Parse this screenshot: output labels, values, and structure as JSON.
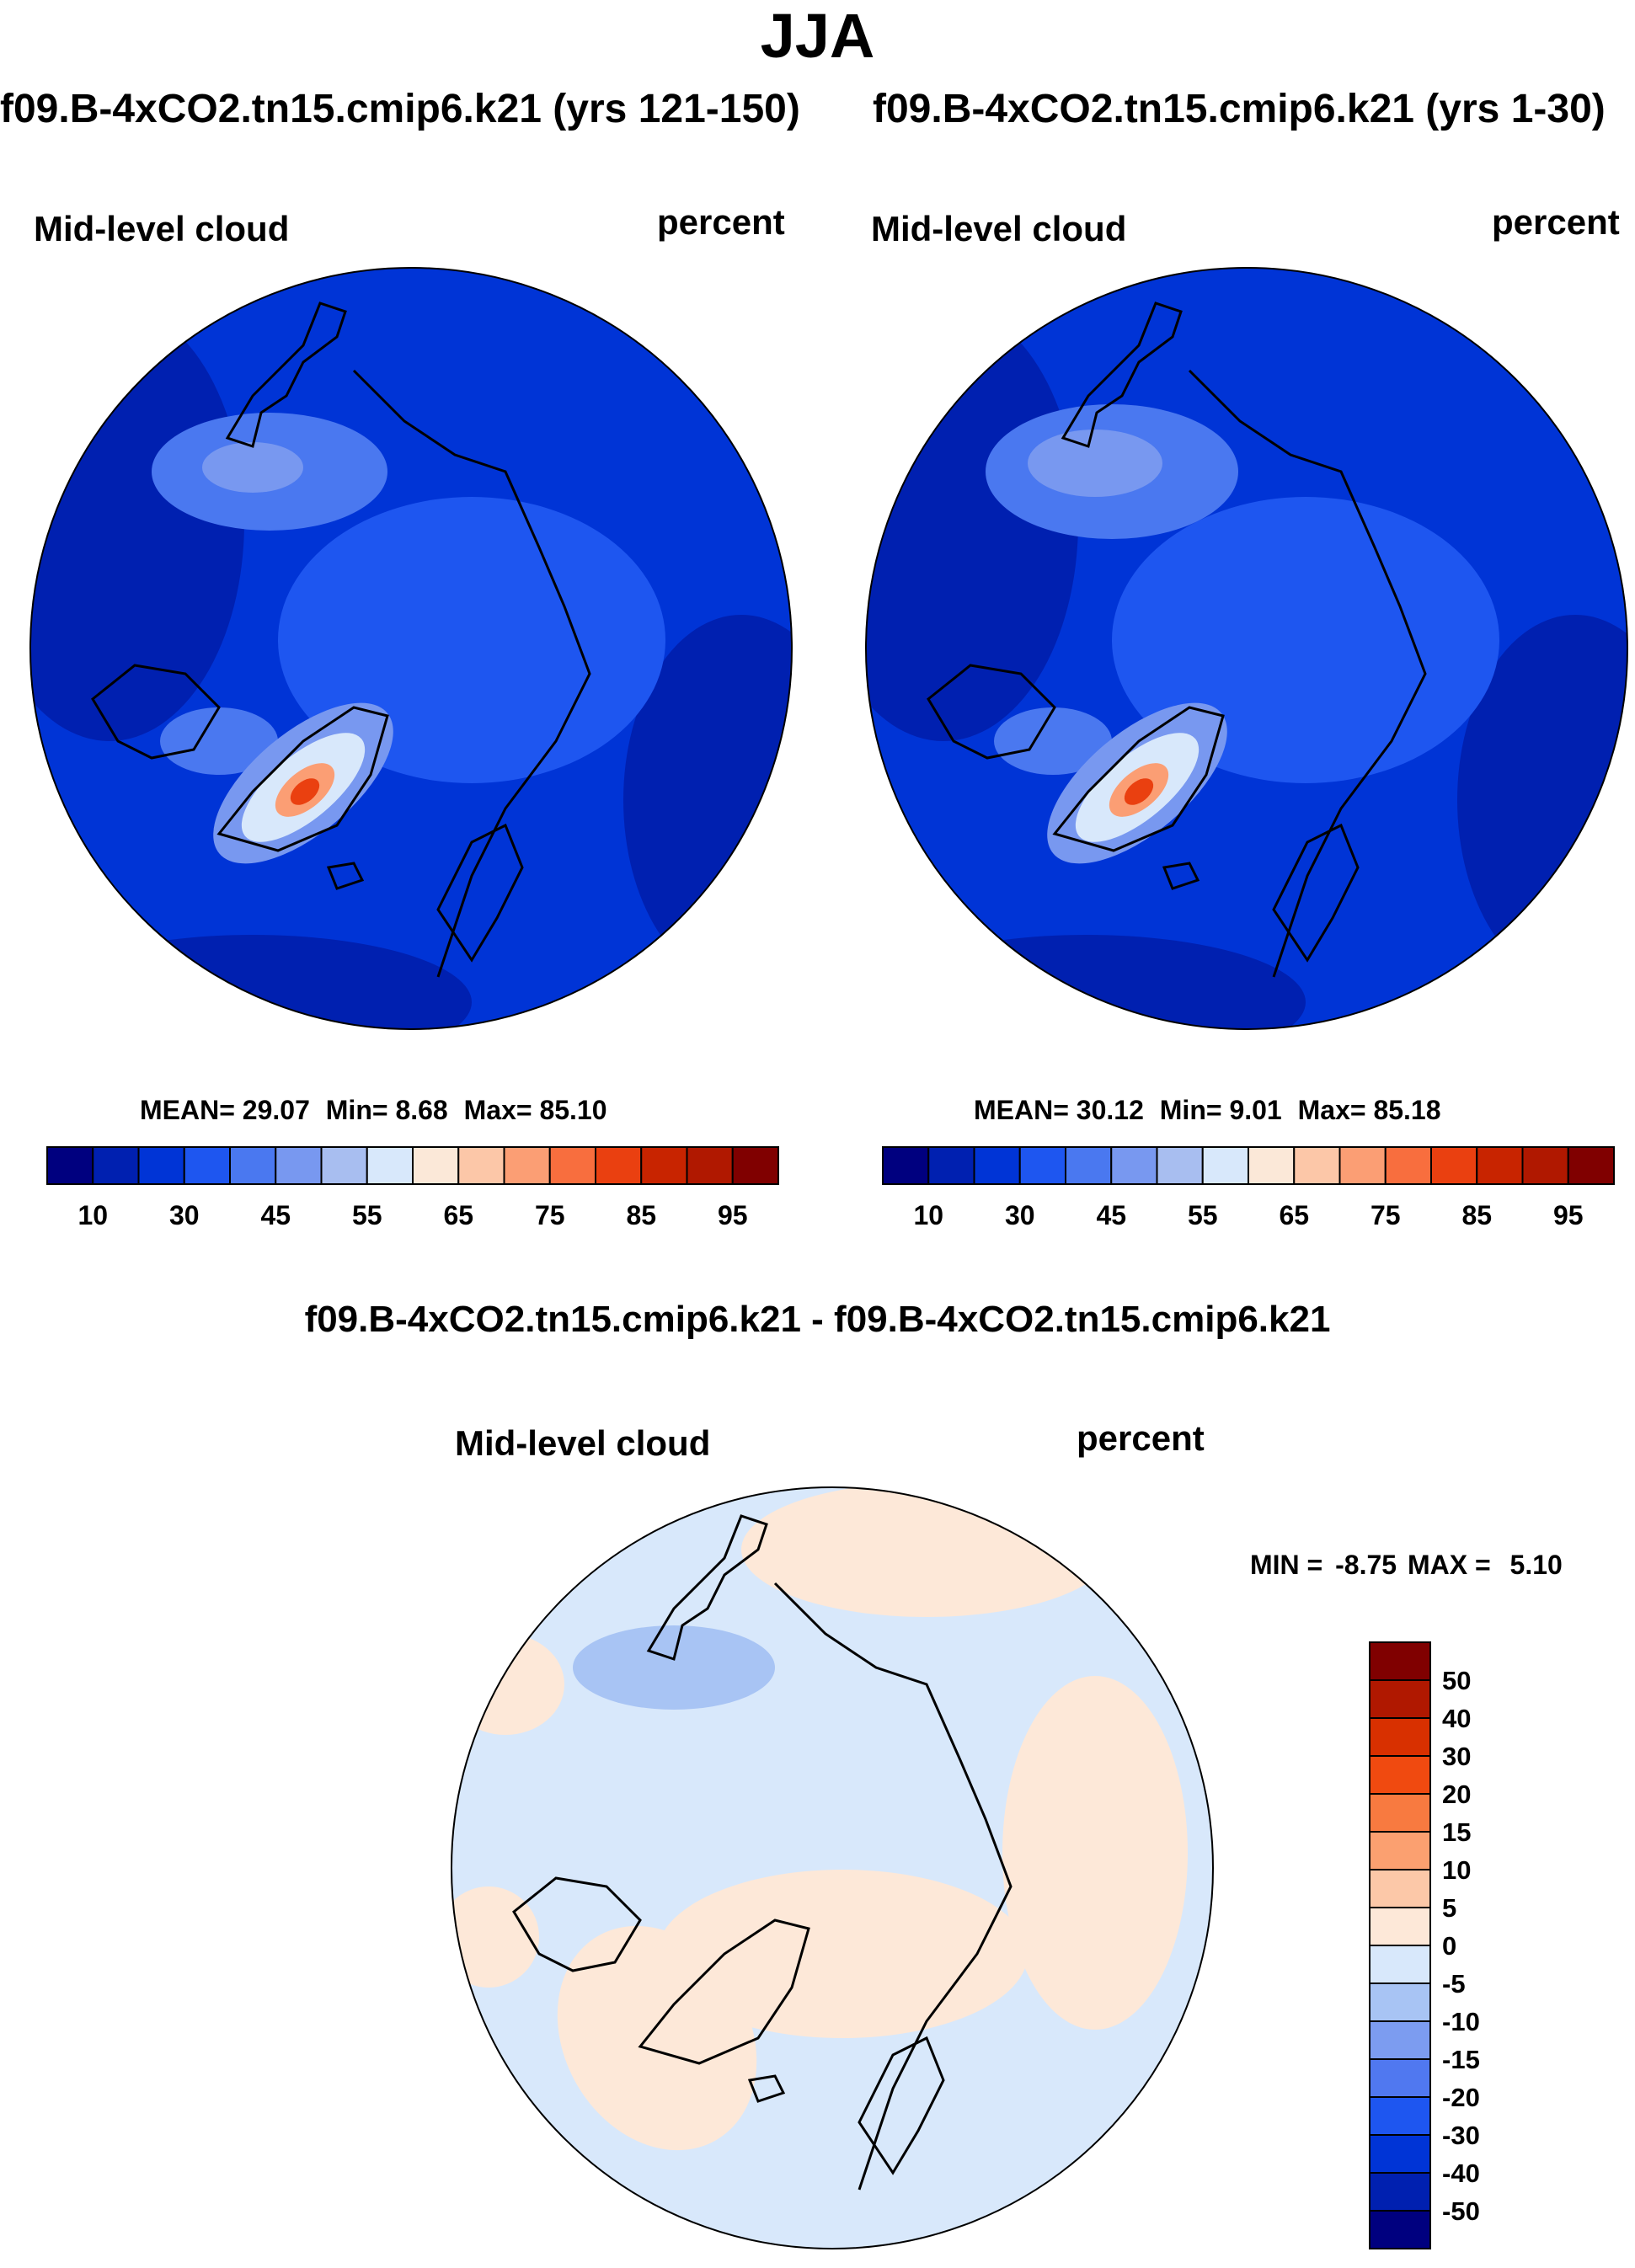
{
  "page_title": "JJA",
  "chart_data": [
    {
      "type": "heatmap",
      "projection": "north-polar-stereographic",
      "case_title": "f09.B-4xCO2.tn15.cmip6.k21 (yrs 121-150)",
      "variable": "Mid-level cloud",
      "units": "percent",
      "stats": {
        "mean_label": "MEAN=",
        "mean": "29.07",
        "min_label": "Min=",
        "min": "8.68",
        "max_label": "Max=",
        "max": "85.10"
      },
      "colorbar": {
        "levels": [
          10,
          20,
          30,
          40,
          45,
          50,
          55,
          60,
          65,
          70,
          75,
          80,
          85,
          90,
          95
        ],
        "tick_labels": [
          "10",
          "30",
          "45",
          "55",
          "65",
          "75",
          "85",
          "95"
        ],
        "colors": [
          "#00007f",
          "#0020b0",
          "#0034d6",
          "#1e56f0",
          "#4a78f0",
          "#7898f0",
          "#a8bef0",
          "#d8e8fb",
          "#fbe8d8",
          "#fcc7a8",
          "#fb9e74",
          "#f86e3e",
          "#ea4010",
          "#c82400",
          "#b01800",
          "#800000"
        ]
      }
    },
    {
      "type": "heatmap",
      "projection": "north-polar-stereographic",
      "case_title": "f09.B-4xCO2.tn15.cmip6.k21 (yrs 1-30)",
      "variable": "Mid-level cloud",
      "units": "percent",
      "stats": {
        "mean_label": "MEAN=",
        "mean": "30.12",
        "min_label": "Min=",
        "min": "9.01",
        "max_label": "Max=",
        "max": "85.18"
      },
      "colorbar": {
        "levels": [
          10,
          20,
          30,
          40,
          45,
          50,
          55,
          60,
          65,
          70,
          75,
          80,
          85,
          90,
          95
        ],
        "tick_labels": [
          "10",
          "30",
          "45",
          "55",
          "65",
          "75",
          "85",
          "95"
        ],
        "colors": [
          "#00007f",
          "#0020b0",
          "#0034d6",
          "#1e56f0",
          "#4a78f0",
          "#7898f0",
          "#a8bef0",
          "#d8e8fb",
          "#fbe8d8",
          "#fcc7a8",
          "#fb9e74",
          "#f86e3e",
          "#ea4010",
          "#c82400",
          "#b01800",
          "#800000"
        ]
      }
    },
    {
      "type": "heatmap",
      "projection": "north-polar-stereographic",
      "case_title": "f09.B-4xCO2.tn15.cmip6.k21 - f09.B-4xCO2.tn15.cmip6.k21",
      "variable": "Mid-level cloud",
      "units": "percent",
      "stats": {
        "min_label": "MIN =",
        "min": "-8.75",
        "max_label": "MAX =",
        "max": "5.10"
      },
      "colorbar": {
        "orientation": "vertical",
        "tick_labels": [
          "50",
          "40",
          "30",
          "20",
          "15",
          "10",
          "5",
          "0",
          "-5",
          "-10",
          "-15",
          "-20",
          "-30",
          "-40",
          "-50"
        ],
        "colors": [
          "#800000",
          "#b01800",
          "#d83000",
          "#f04a10",
          "#f87a40",
          "#fba070",
          "#fcc8a8",
          "#fde8d8",
          "#d8e8fb",
          "#a8c4f4",
          "#7c9cf0",
          "#5078f0",
          "#1e56f0",
          "#0034d6",
          "#0020b0",
          "#00007f"
        ]
      }
    }
  ]
}
